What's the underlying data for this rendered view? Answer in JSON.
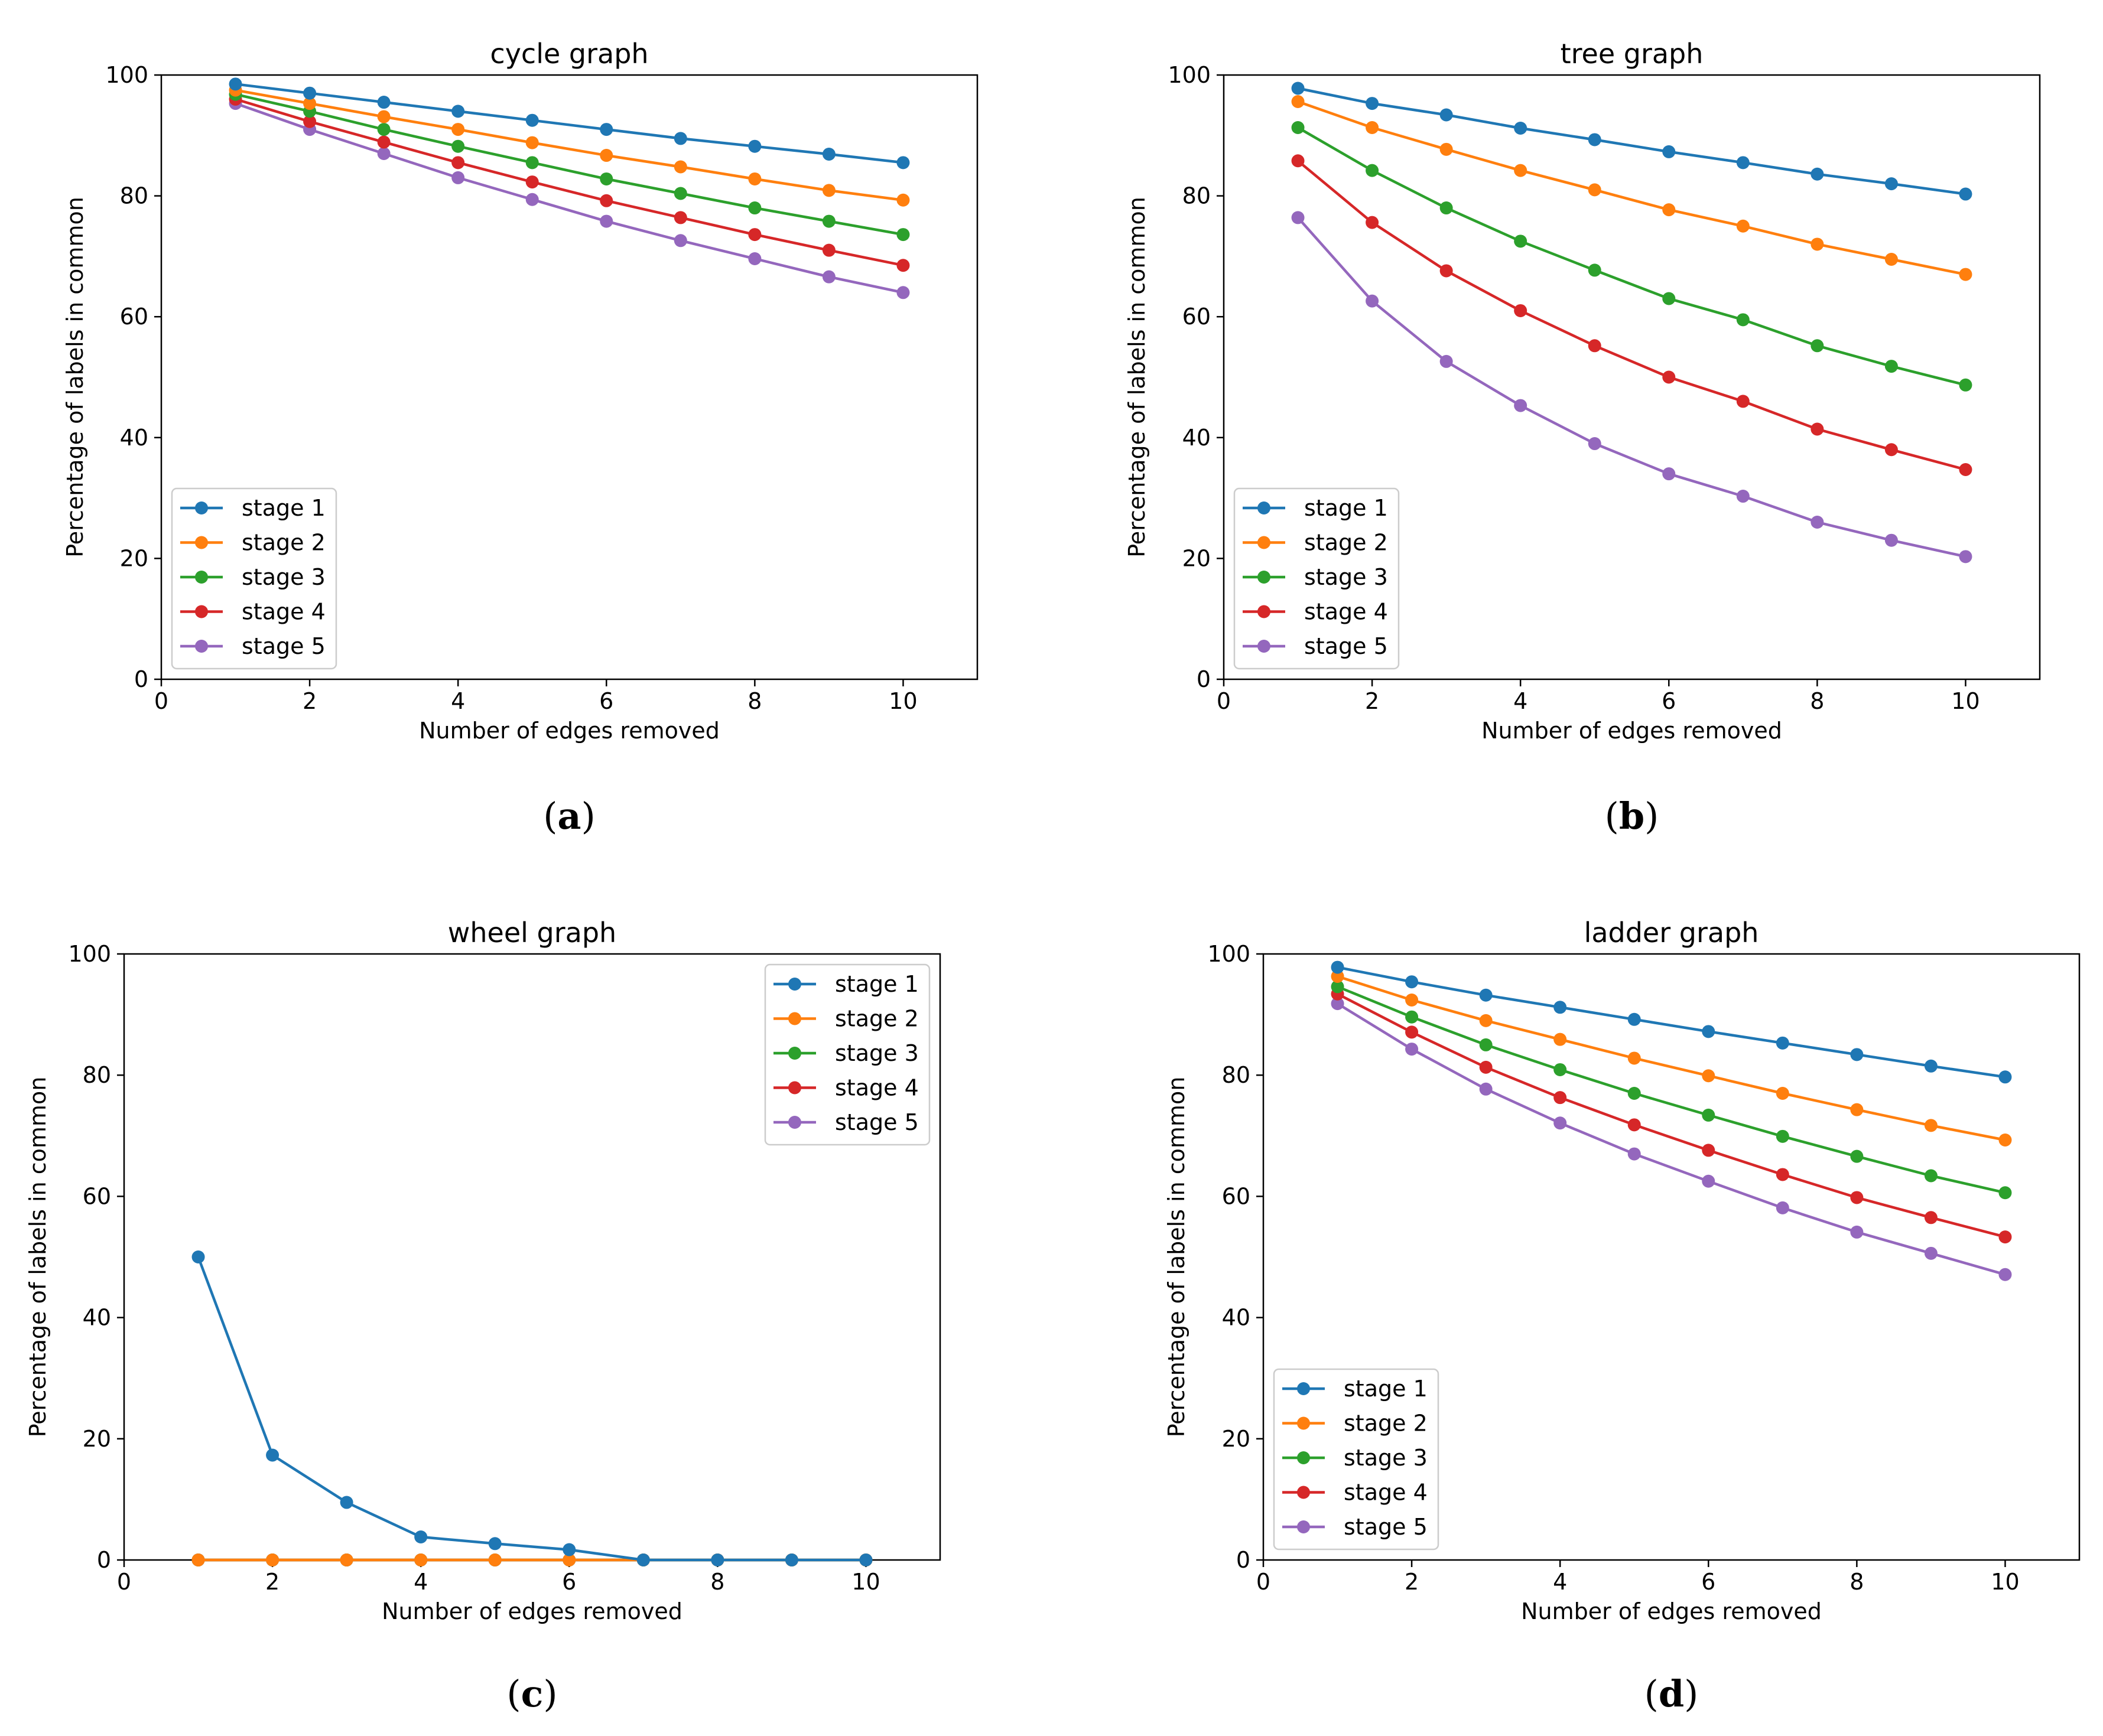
{
  "colors": {
    "stage 1": "#1f77b4",
    "stage 2": "#ff7f0e",
    "stage 3": "#2ca02c",
    "stage 4": "#d62728",
    "stage 5": "#9467bd"
  },
  "chart_data": [
    {
      "type": "line",
      "panel": "(a)",
      "title": "cycle graph",
      "xlabel": "Number of edges removed",
      "ylabel": "Percentage of labels in common",
      "xlim": [
        0,
        11
      ],
      "ylim": [
        0,
        100
      ],
      "xticks": [
        0,
        2,
        4,
        6,
        8,
        10
      ],
      "yticks": [
        0,
        20,
        40,
        60,
        80,
        100
      ],
      "legend_position": "lower-left",
      "x": [
        1,
        2,
        3,
        4,
        5,
        6,
        7,
        8,
        9,
        10
      ],
      "series": [
        {
          "name": "stage 1",
          "values": [
            98.5,
            97.0,
            95.5,
            94.0,
            92.5,
            91.0,
            89.5,
            88.2,
            86.9,
            85.5
          ]
        },
        {
          "name": "stage 2",
          "values": [
            97.5,
            95.3,
            93.1,
            91.0,
            88.8,
            86.7,
            84.8,
            82.8,
            80.9,
            79.3
          ]
        },
        {
          "name": "stage 3",
          "values": [
            96.8,
            94.0,
            91.0,
            88.2,
            85.5,
            82.8,
            80.4,
            78.0,
            75.8,
            73.6
          ]
        },
        {
          "name": "stage 4",
          "values": [
            96.0,
            92.3,
            88.9,
            85.5,
            82.3,
            79.2,
            76.4,
            73.6,
            71.0,
            68.5
          ]
        },
        {
          "name": "stage 5",
          "values": [
            95.3,
            91.0,
            87.0,
            83.0,
            79.4,
            75.8,
            72.6,
            69.6,
            66.6,
            64.0
          ]
        }
      ]
    },
    {
      "type": "line",
      "panel": "(b)",
      "title": "tree graph",
      "xlabel": "Number of edges removed",
      "ylabel": "Percentage of labels in common",
      "xlim": [
        0,
        11
      ],
      "ylim": [
        0,
        100
      ],
      "xticks": [
        0,
        2,
        4,
        6,
        8,
        10
      ],
      "yticks": [
        0,
        20,
        40,
        60,
        80,
        100
      ],
      "legend_position": "lower-left",
      "x": [
        1,
        2,
        3,
        4,
        5,
        6,
        7,
        8,
        9,
        10
      ],
      "series": [
        {
          "name": "stage 1",
          "values": [
            97.8,
            95.3,
            93.4,
            91.2,
            89.3,
            87.3,
            85.5,
            83.6,
            82.0,
            80.3
          ]
        },
        {
          "name": "stage 2",
          "values": [
            95.6,
            91.3,
            87.7,
            84.2,
            81.0,
            77.7,
            75.0,
            72.0,
            69.5,
            67.0
          ]
        },
        {
          "name": "stage 3",
          "values": [
            91.3,
            84.2,
            78.0,
            72.5,
            67.7,
            63.0,
            59.5,
            55.2,
            51.8,
            48.7
          ]
        },
        {
          "name": "stage 4",
          "values": [
            85.8,
            75.6,
            67.6,
            61.0,
            55.2,
            50.0,
            46.0,
            41.4,
            38.0,
            34.7
          ]
        },
        {
          "name": "stage 5",
          "values": [
            76.4,
            62.6,
            52.6,
            45.3,
            39.0,
            34.0,
            30.3,
            26.0,
            23.0,
            20.3
          ]
        }
      ]
    },
    {
      "type": "line",
      "panel": "(c)",
      "title": "wheel graph",
      "xlabel": "Number of edges removed",
      "ylabel": "Percentage of labels in common",
      "xlim": [
        0,
        11
      ],
      "ylim": [
        0,
        100
      ],
      "xticks": [
        0,
        2,
        4,
        6,
        8,
        10
      ],
      "yticks": [
        0,
        20,
        40,
        60,
        80,
        100
      ],
      "legend_position": "upper-right",
      "x": [
        1,
        2,
        3,
        4,
        5,
        6,
        7,
        8,
        9,
        10
      ],
      "series": [
        {
          "name": "stage 1",
          "values": [
            50.0,
            17.3,
            9.5,
            3.8,
            2.7,
            1.7,
            0.0,
            0.0,
            0.0,
            0.0
          ]
        },
        {
          "name": "stage 2",
          "values": [
            0,
            0,
            0,
            0,
            0,
            0,
            0,
            0,
            0,
            0
          ]
        },
        {
          "name": "stage 3",
          "values": [
            0,
            0,
            0,
            0,
            0,
            0,
            0,
            0,
            0,
            0
          ]
        },
        {
          "name": "stage 4",
          "values": [
            0,
            0,
            0,
            0,
            0,
            0,
            0,
            0,
            0,
            0
          ]
        },
        {
          "name": "stage 5",
          "values": [
            0,
            0,
            0,
            0,
            0,
            0,
            0,
            0,
            0,
            0
          ]
        }
      ]
    },
    {
      "type": "line",
      "panel": "(d)",
      "title": "ladder graph",
      "xlabel": "Number of edges removed",
      "ylabel": "Percentage of labels in common",
      "xlim": [
        0,
        11
      ],
      "ylim": [
        0,
        100
      ],
      "xticks": [
        0,
        2,
        4,
        6,
        8,
        10
      ],
      "yticks": [
        0,
        20,
        40,
        60,
        80,
        100
      ],
      "legend_position": "lower-left",
      "x": [
        1,
        2,
        3,
        4,
        5,
        6,
        7,
        8,
        9,
        10
      ],
      "series": [
        {
          "name": "stage 1",
          "values": [
            97.8,
            95.4,
            93.2,
            91.2,
            89.2,
            87.2,
            85.3,
            83.4,
            81.5,
            79.7
          ]
        },
        {
          "name": "stage 2",
          "values": [
            96.3,
            92.4,
            89.0,
            85.9,
            82.8,
            79.9,
            77.0,
            74.3,
            71.7,
            69.3
          ]
        },
        {
          "name": "stage 3",
          "values": [
            94.6,
            89.6,
            85.0,
            80.9,
            77.0,
            73.4,
            69.9,
            66.6,
            63.4,
            60.6
          ]
        },
        {
          "name": "stage 4",
          "values": [
            93.4,
            87.1,
            81.3,
            76.3,
            71.8,
            67.6,
            63.6,
            59.8,
            56.5,
            53.3
          ]
        },
        {
          "name": "stage 5",
          "values": [
            91.8,
            84.3,
            77.7,
            72.1,
            67.0,
            62.5,
            58.1,
            54.1,
            50.6,
            47.1
          ]
        }
      ]
    }
  ]
}
